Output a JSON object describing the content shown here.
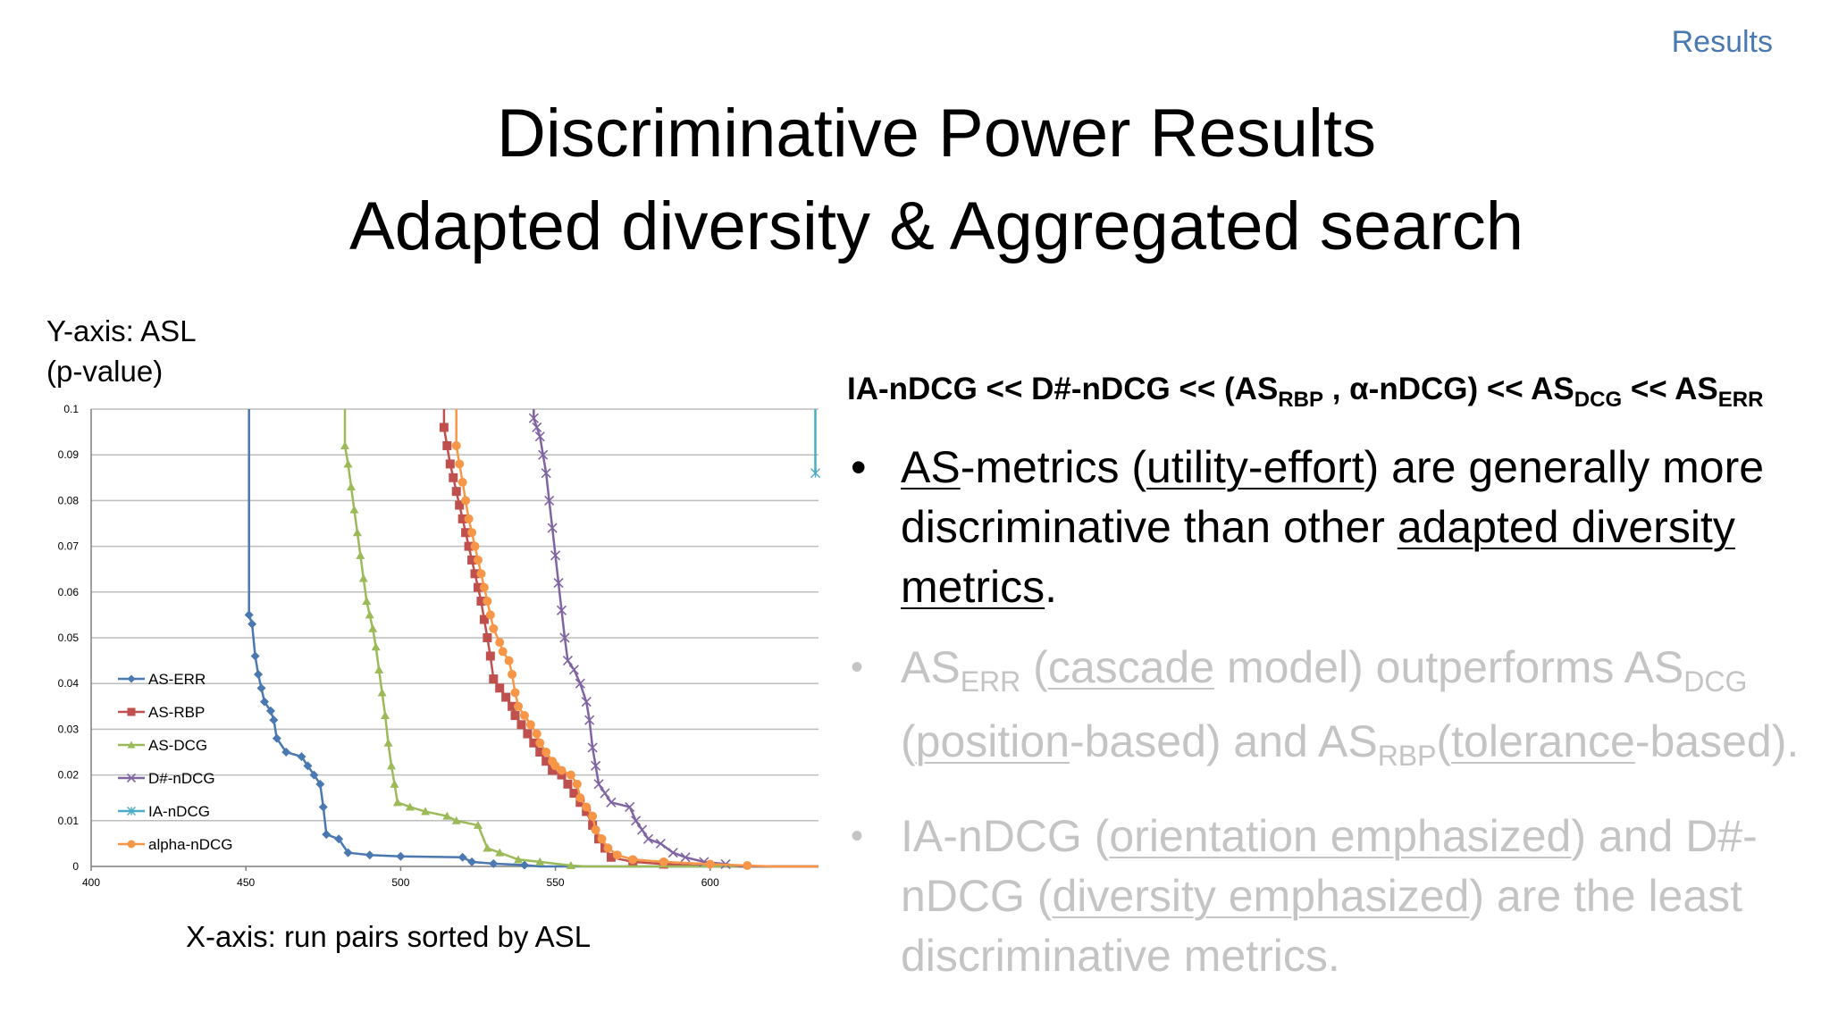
{
  "header": {
    "section": "Results"
  },
  "title": {
    "line1": "Discriminative Power Results",
    "line2": "Adapted diversity & Aggregated search"
  },
  "chart_labels": {
    "y_label_line1": "Y-axis: ASL",
    "y_label_line2": "(p-value)",
    "x_label": "X-axis: run pairs sorted by ASL"
  },
  "formula": {
    "p1": "IA-nDCG << D#-nDCG << (AS",
    "s1": "RBP",
    "p2": " , α-nDCG) << AS",
    "s2": "DCG",
    "p3": " << AS",
    "s3": "ERR"
  },
  "bullets": [
    {
      "t1": "AS",
      "t2": "-metrics (",
      "t3": "utility-effort",
      "t4": ") are generally more discriminative than other ",
      "t5": "adapted diversity metrics",
      "t6": "."
    },
    {
      "t1": "AS",
      "s1": "ERR",
      "t2": " (",
      "t3": "cascade",
      "t4": " model) outperforms AS",
      "s2": "DCG",
      "t5": " (",
      "t6": "position",
      "t7": "-based) and AS",
      "s3": "RBP",
      "t8": "(",
      "t9": "tolerance",
      "t10": "-based)."
    },
    {
      "t1": "IA-nDCG (",
      "t2": "orientation emphasized",
      "t3": ") and D#-nDCG (",
      "t4": "diversity emphasized",
      "t5": ") are the least discriminative metrics."
    }
  ],
  "colors": {
    "accent": "#4a78b0",
    "dim_text": "#c4c4c4"
  },
  "chart_data": {
    "type": "line",
    "xlim": [
      400,
      635
    ],
    "ylim": [
      0,
      0.1
    ],
    "x_ticks": [
      "400",
      "450",
      "500",
      "550",
      "600"
    ],
    "y_ticks": [
      "0",
      "0.01",
      "0.02",
      "0.03",
      "0.04",
      "0.05",
      "0.06",
      "0.07",
      "0.08",
      "0.09",
      "0.1"
    ],
    "grid": "horizontal",
    "legend_position": "lower-left",
    "series": [
      {
        "name": "AS-ERR",
        "color": "#4a78b0",
        "marker": "diamond",
        "points": [
          [
            451,
            0.1
          ],
          [
            451,
            0.055
          ],
          [
            452,
            0.053
          ],
          [
            453,
            0.046
          ],
          [
            454,
            0.042
          ],
          [
            455,
            0.039
          ],
          [
            456,
            0.036
          ],
          [
            458,
            0.034
          ],
          [
            459,
            0.032
          ],
          [
            460,
            0.028
          ],
          [
            463,
            0.025
          ],
          [
            468,
            0.024
          ],
          [
            470,
            0.022
          ],
          [
            472,
            0.02
          ],
          [
            474,
            0.018
          ],
          [
            475,
            0.013
          ],
          [
            476,
            0.007
          ],
          [
            480,
            0.006
          ],
          [
            483,
            0.003
          ],
          [
            490,
            0.0025
          ],
          [
            500,
            0.0022
          ],
          [
            520,
            0.002
          ],
          [
            523,
            0.001
          ],
          [
            530,
            0.0006
          ],
          [
            540,
            0.0003
          ],
          [
            545,
            0
          ],
          [
            635,
            0
          ]
        ]
      },
      {
        "name": "AS-RBP",
        "color": "#c0504d",
        "marker": "square",
        "points": [
          [
            514,
            0.1
          ],
          [
            514,
            0.096
          ],
          [
            515,
            0.092
          ],
          [
            516,
            0.088
          ],
          [
            517,
            0.085
          ],
          [
            518,
            0.082
          ],
          [
            519,
            0.079
          ],
          [
            520,
            0.076
          ],
          [
            521,
            0.073
          ],
          [
            522,
            0.07
          ],
          [
            523,
            0.067
          ],
          [
            524,
            0.064
          ],
          [
            525,
            0.061
          ],
          [
            526,
            0.058
          ],
          [
            527,
            0.054
          ],
          [
            528,
            0.05
          ],
          [
            529,
            0.046
          ],
          [
            530,
            0.041
          ],
          [
            532,
            0.039
          ],
          [
            534,
            0.037
          ],
          [
            536,
            0.035
          ],
          [
            537,
            0.033
          ],
          [
            539,
            0.031
          ],
          [
            541,
            0.029
          ],
          [
            543,
            0.027
          ],
          [
            545,
            0.025
          ],
          [
            547,
            0.023
          ],
          [
            549,
            0.021
          ],
          [
            552,
            0.02
          ],
          [
            554,
            0.018
          ],
          [
            556,
            0.016
          ],
          [
            558,
            0.014
          ],
          [
            560,
            0.012
          ],
          [
            562,
            0.009
          ],
          [
            564,
            0.006
          ],
          [
            566,
            0.004
          ],
          [
            568,
            0.002
          ],
          [
            575,
            0.001
          ],
          [
            585,
            0.0005
          ],
          [
            600,
            0
          ],
          [
            635,
            0
          ]
        ]
      },
      {
        "name": "AS-DCG",
        "color": "#9bbb59",
        "marker": "triangle",
        "points": [
          [
            482,
            0.1
          ],
          [
            482,
            0.092
          ],
          [
            483,
            0.088
          ],
          [
            484,
            0.083
          ],
          [
            485,
            0.078
          ],
          [
            486,
            0.073
          ],
          [
            487,
            0.068
          ],
          [
            488,
            0.063
          ],
          [
            489,
            0.058
          ],
          [
            490,
            0.055
          ],
          [
            491,
            0.052
          ],
          [
            492,
            0.048
          ],
          [
            493,
            0.043
          ],
          [
            494,
            0.038
          ],
          [
            495,
            0.033
          ],
          [
            496,
            0.027
          ],
          [
            497,
            0.022
          ],
          [
            498,
            0.018
          ],
          [
            499,
            0.014
          ],
          [
            503,
            0.013
          ],
          [
            508,
            0.012
          ],
          [
            515,
            0.011
          ],
          [
            518,
            0.01
          ],
          [
            525,
            0.009
          ],
          [
            528,
            0.004
          ],
          [
            532,
            0.003
          ],
          [
            538,
            0.0015
          ],
          [
            545,
            0.001
          ],
          [
            555,
            0.0002
          ],
          [
            560,
            0
          ],
          [
            635,
            0
          ]
        ]
      },
      {
        "name": "D#-nDCG",
        "color": "#8064a2",
        "marker": "x",
        "points": [
          [
            543,
            0.1
          ],
          [
            543,
            0.098
          ],
          [
            544,
            0.096
          ],
          [
            545,
            0.094
          ],
          [
            546,
            0.09
          ],
          [
            547,
            0.086
          ],
          [
            548,
            0.08
          ],
          [
            549,
            0.074
          ],
          [
            550,
            0.068
          ],
          [
            551,
            0.062
          ],
          [
            552,
            0.056
          ],
          [
            553,
            0.05
          ],
          [
            554,
            0.045
          ],
          [
            556,
            0.043
          ],
          [
            558,
            0.04
          ],
          [
            560,
            0.036
          ],
          [
            561,
            0.032
          ],
          [
            562,
            0.026
          ],
          [
            563,
            0.022
          ],
          [
            564,
            0.018
          ],
          [
            566,
            0.016
          ],
          [
            568,
            0.014
          ],
          [
            574,
            0.013
          ],
          [
            576,
            0.01
          ],
          [
            578,
            0.008
          ],
          [
            580,
            0.006
          ],
          [
            584,
            0.005
          ],
          [
            588,
            0.003
          ],
          [
            592,
            0.002
          ],
          [
            598,
            0.001
          ],
          [
            605,
            0.0005
          ],
          [
            610,
            0
          ],
          [
            635,
            0
          ]
        ]
      },
      {
        "name": "IA-nDCG",
        "color": "#4bacc6",
        "marker": "star",
        "points": [
          [
            634,
            0.1
          ],
          [
            634,
            0.086
          ]
        ]
      },
      {
        "name": "alpha-nDCG",
        "color": "#f79646",
        "marker": "circle",
        "points": [
          [
            518,
            0.1
          ],
          [
            518,
            0.092
          ],
          [
            519,
            0.088
          ],
          [
            520,
            0.084
          ],
          [
            521,
            0.08
          ],
          [
            522,
            0.076
          ],
          [
            523,
            0.073
          ],
          [
            524,
            0.07
          ],
          [
            525,
            0.067
          ],
          [
            526,
            0.064
          ],
          [
            527,
            0.061
          ],
          [
            528,
            0.058
          ],
          [
            529,
            0.055
          ],
          [
            530,
            0.052
          ],
          [
            532,
            0.049
          ],
          [
            533,
            0.047
          ],
          [
            535,
            0.045
          ],
          [
            536,
            0.042
          ],
          [
            537,
            0.038
          ],
          [
            538,
            0.035
          ],
          [
            540,
            0.033
          ],
          [
            542,
            0.031
          ],
          [
            544,
            0.029
          ],
          [
            545,
            0.027
          ],
          [
            547,
            0.025
          ],
          [
            549,
            0.023
          ],
          [
            550,
            0.022
          ],
          [
            552,
            0.021
          ],
          [
            555,
            0.02
          ],
          [
            557,
            0.018
          ],
          [
            558,
            0.015
          ],
          [
            560,
            0.013
          ],
          [
            562,
            0.011
          ],
          [
            563,
            0.008
          ],
          [
            565,
            0.006
          ],
          [
            567,
            0.004
          ],
          [
            570,
            0.0025
          ],
          [
            575,
            0.0015
          ],
          [
            585,
            0.001
          ],
          [
            600,
            0.0005
          ],
          [
            612,
            0.0002
          ],
          [
            620,
            0
          ],
          [
            635,
            0
          ]
        ]
      }
    ]
  }
}
